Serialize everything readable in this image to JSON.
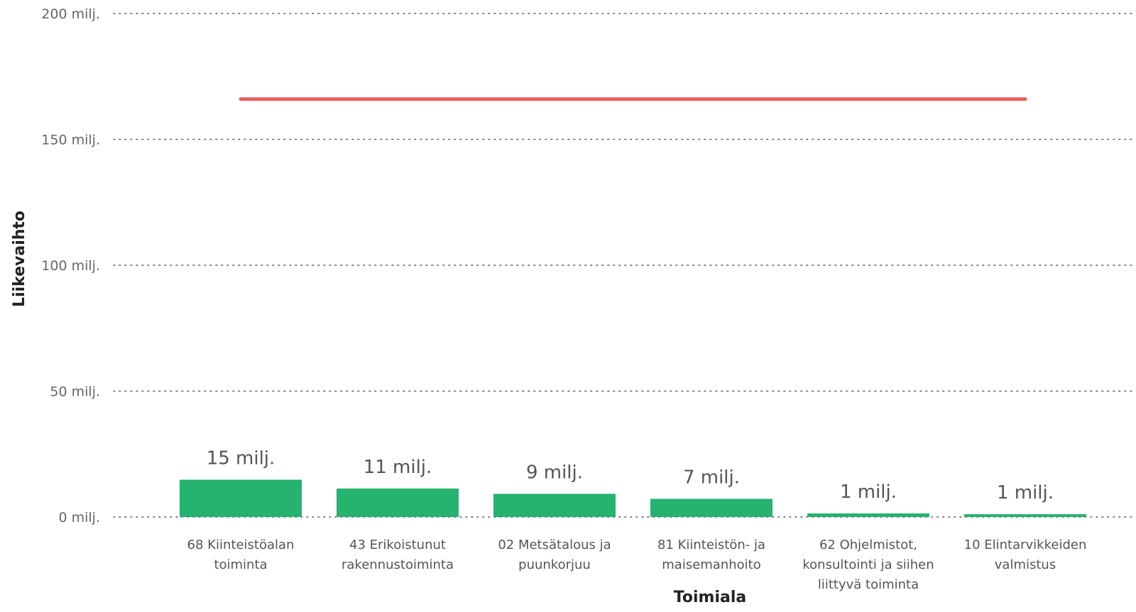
{
  "chart_data": {
    "type": "bar",
    "xlabel": "Toimiala",
    "ylabel": "Liikevaihto",
    "ylim": [
      0,
      200000000
    ],
    "yticks": [
      {
        "value": 0,
        "label": "0 milj."
      },
      {
        "value": 50000000,
        "label": "50 milj."
      },
      {
        "value": 100000000,
        "label": "100 milj."
      },
      {
        "value": 150000000,
        "label": "150 milj."
      },
      {
        "value": 200000000,
        "label": "200 milj."
      }
    ],
    "grid": true,
    "categories": [
      [
        "68 Kiinteistöalan",
        "toiminta"
      ],
      [
        "43 Erikoistunut",
        "rakennustoiminta"
      ],
      [
        "02 Metsätalous ja",
        "puunkorjuu"
      ],
      [
        "81 Kiinteistön- ja",
        "maisemanhoito"
      ],
      [
        "62 Ohjelmistot,",
        "konsultointi ja siihen",
        "liittyvä toiminta"
      ],
      [
        "10 Elintarvikkeiden",
        "valmistus"
      ]
    ],
    "values": [
      14800000,
      11300000,
      9200000,
      7200000,
      1400000,
      1100000
    ],
    "data_labels": [
      "15 milj.",
      "11 milj.",
      "9 milj.",
      "7 milj.",
      "1 milj.",
      "1 milj."
    ],
    "reference_line": {
      "value": 166000000,
      "from_category": 0,
      "to_category": 5
    },
    "colors": {
      "bar": "#26b26f",
      "reference_line": "#e8605f",
      "grid": "#555555"
    }
  }
}
